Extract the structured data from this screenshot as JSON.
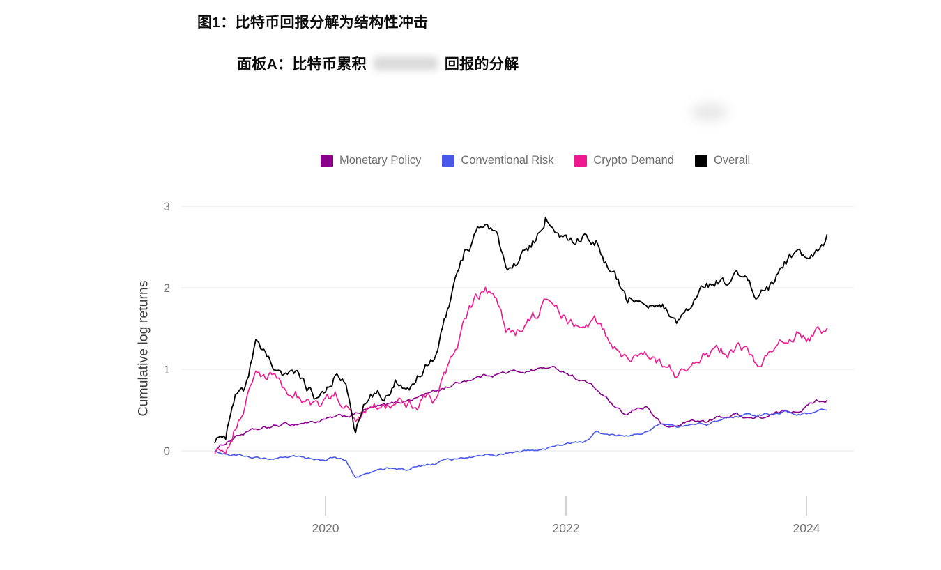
{
  "figure": {
    "title": "图1：比特币回报分解为结构性冲击",
    "panel_label_prefix": "面板A：比特币累积",
    "panel_label_redacted": "",
    "panel_label_suffix": "回报的分解"
  },
  "chart_data": {
    "type": "line",
    "title": "图1：比特币回报分解为结构性冲击",
    "subtitle": "面板A：比特币累积 [遮盖] 回报的分解",
    "xlabel": "",
    "ylabel": "Cumulative log returns",
    "grid": "horizontal",
    "legend_position": "top",
    "xlim": [
      2018.95,
      2024.45
    ],
    "ylim": [
      -0.55,
      3.1
    ],
    "x_ticks": [
      2020,
      2022,
      2024
    ],
    "x_tick_labels": [
      "2020",
      "2022",
      "2024"
    ],
    "y_ticks": [
      0,
      1,
      2,
      3
    ],
    "y_tick_labels": [
      "0",
      "1",
      "2",
      "3"
    ],
    "x": [
      2019.08,
      2019.17,
      2019.25,
      2019.33,
      2019.42,
      2019.5,
      2019.58,
      2019.67,
      2019.75,
      2019.83,
      2019.92,
      2020.0,
      2020.08,
      2020.17,
      2020.25,
      2020.33,
      2020.42,
      2020.5,
      2020.58,
      2020.67,
      2020.75,
      2020.83,
      2020.92,
      2021.0,
      2021.08,
      2021.17,
      2021.25,
      2021.33,
      2021.42,
      2021.5,
      2021.58,
      2021.67,
      2021.75,
      2021.83,
      2021.92,
      2022.0,
      2022.08,
      2022.17,
      2022.25,
      2022.33,
      2022.42,
      2022.5,
      2022.58,
      2022.67,
      2022.75,
      2022.83,
      2022.92,
      2023.0,
      2023.08,
      2023.17,
      2023.25,
      2023.33,
      2023.42,
      2023.5,
      2023.58,
      2023.67,
      2023.75,
      2023.83,
      2023.92,
      2024.0,
      2024.08,
      2024.17
    ],
    "series": [
      {
        "name": "Monetary Policy",
        "color": "#8b008b",
        "values": [
          0.0,
          0.1,
          0.18,
          0.22,
          0.25,
          0.27,
          0.3,
          0.32,
          0.33,
          0.35,
          0.36,
          0.38,
          0.4,
          0.42,
          0.45,
          0.5,
          0.53,
          0.55,
          0.58,
          0.62,
          0.65,
          0.7,
          0.73,
          0.78,
          0.82,
          0.87,
          0.9,
          0.93,
          0.95,
          0.96,
          0.97,
          0.98,
          1.0,
          1.02,
          1.0,
          0.97,
          0.9,
          0.85,
          0.75,
          0.65,
          0.5,
          0.42,
          0.5,
          0.55,
          0.4,
          0.28,
          0.3,
          0.35,
          0.38,
          0.35,
          0.4,
          0.42,
          0.45,
          0.42,
          0.4,
          0.42,
          0.45,
          0.48,
          0.5,
          0.55,
          0.62,
          0.62
        ]
      },
      {
        "name": "Conventional Risk",
        "color": "#4a57e8",
        "values": [
          0.0,
          -0.03,
          -0.05,
          -0.05,
          -0.08,
          -0.1,
          -0.08,
          -0.1,
          -0.08,
          -0.1,
          -0.1,
          -0.1,
          -0.08,
          -0.12,
          -0.35,
          -0.28,
          -0.25,
          -0.22,
          -0.2,
          -0.22,
          -0.2,
          -0.18,
          -0.15,
          -0.12,
          -0.1,
          -0.08,
          -0.08,
          -0.05,
          -0.05,
          -0.03,
          -0.02,
          0.0,
          0.02,
          0.03,
          0.05,
          0.08,
          0.1,
          0.12,
          0.22,
          0.2,
          0.18,
          0.2,
          0.22,
          0.25,
          0.3,
          0.32,
          0.3,
          0.33,
          0.35,
          0.33,
          0.38,
          0.4,
          0.42,
          0.45,
          0.43,
          0.45,
          0.45,
          0.47,
          0.45,
          0.45,
          0.48,
          0.5
        ]
      },
      {
        "name": "Crypto Demand",
        "color": "#f0188e",
        "values": [
          0.0,
          0.05,
          0.35,
          0.55,
          1.0,
          0.85,
          0.9,
          0.7,
          0.75,
          0.6,
          0.5,
          0.55,
          0.65,
          0.55,
          0.3,
          0.5,
          0.55,
          0.6,
          0.65,
          0.6,
          0.6,
          0.65,
          0.6,
          0.9,
          1.2,
          1.6,
          1.85,
          1.95,
          1.85,
          1.4,
          1.45,
          1.6,
          1.65,
          1.85,
          1.7,
          1.6,
          1.55,
          1.65,
          1.6,
          1.4,
          1.25,
          1.1,
          1.2,
          1.15,
          1.1,
          1.05,
          0.9,
          0.95,
          1.1,
          1.2,
          1.25,
          1.2,
          1.25,
          1.2,
          1.1,
          1.15,
          1.25,
          1.35,
          1.45,
          1.35,
          1.45,
          1.5
        ]
      },
      {
        "name": "Overall",
        "color": "#000000",
        "values": [
          0.1,
          0.15,
          0.65,
          0.75,
          1.3,
          1.1,
          1.0,
          0.85,
          0.95,
          0.75,
          0.65,
          0.7,
          0.95,
          0.85,
          0.25,
          0.6,
          0.7,
          0.75,
          0.9,
          0.85,
          0.9,
          1.1,
          1.15,
          1.6,
          2.0,
          2.45,
          2.7,
          2.85,
          2.65,
          2.15,
          2.25,
          2.5,
          2.6,
          2.9,
          2.75,
          2.6,
          2.55,
          2.65,
          2.6,
          2.3,
          2.1,
          1.85,
          1.9,
          1.8,
          1.75,
          1.7,
          1.55,
          1.65,
          1.9,
          2.05,
          2.1,
          2.05,
          2.15,
          2.1,
          1.95,
          1.95,
          2.1,
          2.3,
          2.4,
          2.35,
          2.5,
          2.65
        ]
      }
    ]
  }
}
